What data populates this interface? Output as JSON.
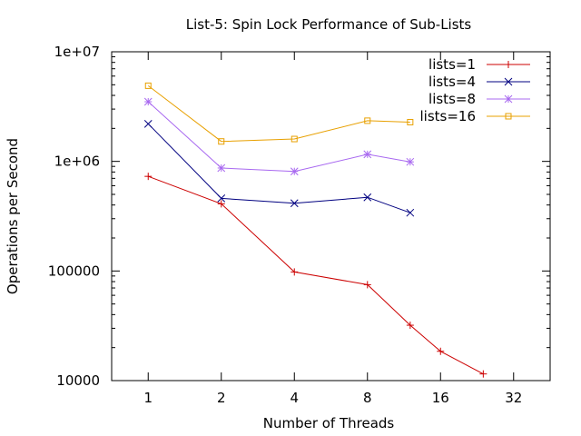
{
  "chart_data": {
    "type": "line",
    "title": "List-5: Spin Lock Performance of Sub-Lists",
    "xlabel": "Number of Threads",
    "ylabel": "Operations per Second",
    "xscale": "log2",
    "yscale": "log10",
    "xlim": [
      0.7071,
      45.25
    ],
    "ylim": [
      10000,
      10000000
    ],
    "xticks": [
      1,
      2,
      4,
      8,
      16,
      32
    ],
    "xtick_labels": [
      "1",
      "2",
      "4",
      "8",
      "16",
      "32"
    ],
    "yticks": [
      10000,
      100000,
      1000000,
      10000000
    ],
    "ytick_labels": [
      "10000",
      "100000",
      "1e+06",
      "1e+07"
    ],
    "grid": false,
    "legend_position": "top-right",
    "series": [
      {
        "name": "lists=1",
        "color": "#cc0000",
        "marker": "plus",
        "x": [
          1,
          2,
          4,
          8,
          12,
          16,
          24
        ],
        "y": [
          730000,
          410000,
          98000,
          75000,
          32000,
          18500,
          11500
        ]
      },
      {
        "name": "lists=4",
        "color": "#000080",
        "marker": "x",
        "x": [
          1,
          2,
          4,
          8,
          12
        ],
        "y": [
          2200000,
          460000,
          415000,
          470000,
          340000
        ]
      },
      {
        "name": "lists=8",
        "color": "#a868f0",
        "marker": "star",
        "x": [
          1,
          2,
          4,
          8,
          12
        ],
        "y": [
          3500000,
          870000,
          810000,
          1160000,
          990000
        ]
      },
      {
        "name": "lists=16",
        "color": "#e8a000",
        "marker": "square",
        "x": [
          1,
          2,
          4,
          8,
          12
        ],
        "y": [
          4900000,
          1520000,
          1600000,
          2350000,
          2280000
        ]
      }
    ]
  }
}
